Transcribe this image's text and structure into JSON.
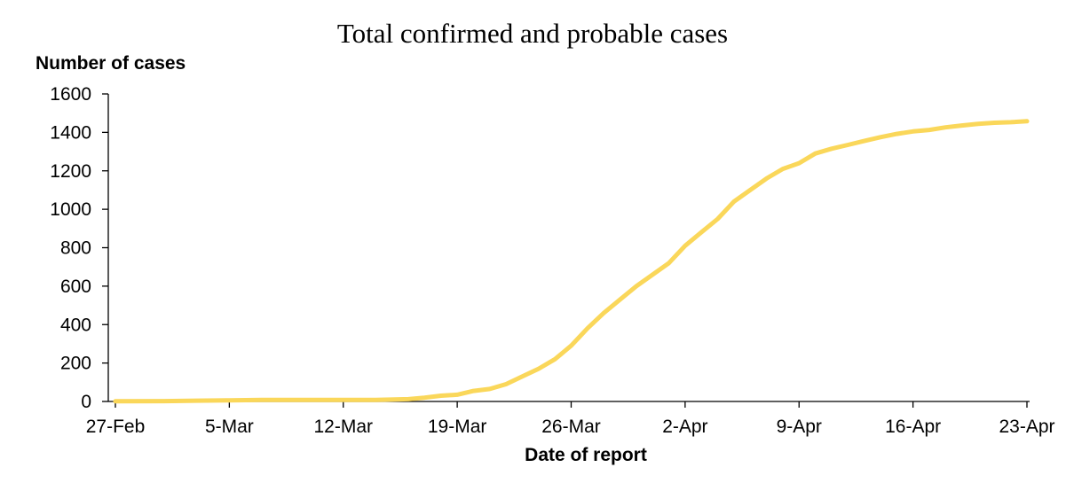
{
  "chart_data": {
    "type": "line",
    "title": "Total confirmed and probable cases",
    "ylabel": "Number of cases",
    "xlabel": "Date of report",
    "ylim": [
      0,
      1600
    ],
    "yticks": [
      0,
      200,
      400,
      600,
      800,
      1000,
      1200,
      1400,
      1600
    ],
    "xticks": [
      "27-Feb",
      "5-Mar",
      "12-Mar",
      "19-Mar",
      "26-Mar",
      "2-Apr",
      "9-Apr",
      "16-Apr",
      "23-Apr"
    ],
    "grid": false,
    "legend": "none",
    "series": [
      {
        "color": "#FAD75A",
        "points": [
          [
            "27-Feb",
            1
          ],
          [
            "1-Mar",
            2
          ],
          [
            "3-Mar",
            4
          ],
          [
            "5-Mar",
            6
          ],
          [
            "7-Mar",
            8
          ],
          [
            "9-Mar",
            8
          ],
          [
            "12-Mar",
            8
          ],
          [
            "14-Mar",
            8
          ],
          [
            "16-Mar",
            12
          ],
          [
            "17-Mar",
            20
          ],
          [
            "18-Mar",
            30
          ],
          [
            "19-Mar",
            35
          ],
          [
            "20-Mar",
            55
          ],
          [
            "21-Mar",
            65
          ],
          [
            "22-Mar",
            90
          ],
          [
            "23-Mar",
            130
          ],
          [
            "24-Mar",
            170
          ],
          [
            "25-Mar",
            220
          ],
          [
            "26-Mar",
            290
          ],
          [
            "27-Mar",
            380
          ],
          [
            "28-Mar",
            460
          ],
          [
            "29-Mar",
            530
          ],
          [
            "30-Mar",
            600
          ],
          [
            "31-Mar",
            660
          ],
          [
            "1-Apr",
            720
          ],
          [
            "2-Apr",
            810
          ],
          [
            "3-Apr",
            880
          ],
          [
            "4-Apr",
            950
          ],
          [
            "5-Apr",
            1040
          ],
          [
            "6-Apr",
            1100
          ],
          [
            "7-Apr",
            1160
          ],
          [
            "8-Apr",
            1210
          ],
          [
            "9-Apr",
            1240
          ],
          [
            "10-Apr",
            1290
          ],
          [
            "11-Apr",
            1315
          ],
          [
            "12-Apr",
            1335
          ],
          [
            "13-Apr",
            1355
          ],
          [
            "14-Apr",
            1375
          ],
          [
            "15-Apr",
            1392
          ],
          [
            "16-Apr",
            1405
          ],
          [
            "17-Apr",
            1413
          ],
          [
            "18-Apr",
            1426
          ],
          [
            "19-Apr",
            1436
          ],
          [
            "20-Apr",
            1444
          ],
          [
            "21-Apr",
            1450
          ],
          [
            "22-Apr",
            1453
          ],
          [
            "23-Apr",
            1458
          ]
        ]
      }
    ]
  }
}
